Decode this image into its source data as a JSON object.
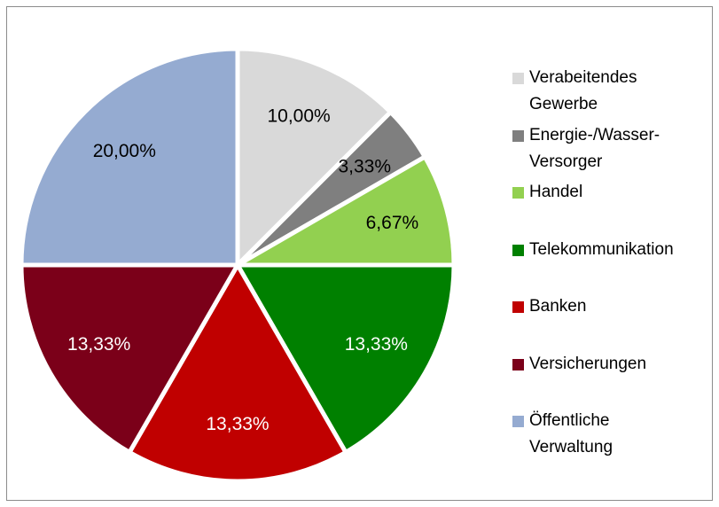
{
  "chart_data": {
    "type": "pie",
    "categories": [
      "Verabeitendes Gewerbe",
      "Energie-/Wasser-Versorger",
      "Handel",
      "Telekommunikation",
      "Banken",
      "Versicherungen",
      "Öffentliche Verwaltung"
    ],
    "values": [
      10,
      3.33,
      6.67,
      13.33,
      13.33,
      13.33,
      20
    ],
    "value_labels": [
      "10,00%",
      "3,33%",
      "6,67%",
      "13,33%",
      "13,33%",
      "13,33%",
      "20,00%"
    ],
    "colors": [
      "#d9d9d9",
      "#7f7f7f",
      "#92d050",
      "#008000",
      "#c00000",
      "#7b0019",
      "#95abd1"
    ],
    "legend": "right"
  }
}
